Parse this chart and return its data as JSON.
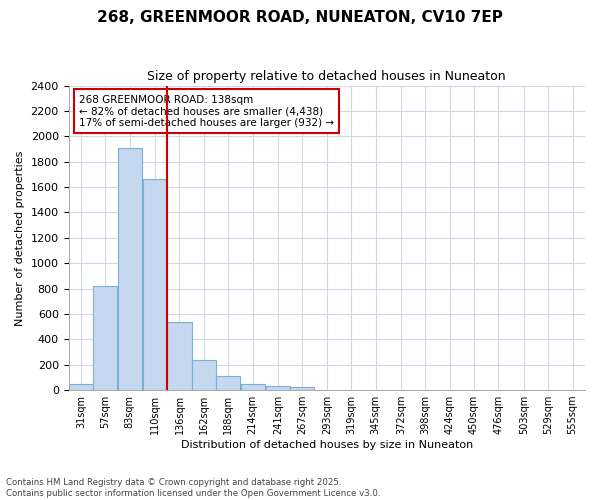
{
  "title": "268, GREENMOOR ROAD, NUNEATON, CV10 7EP",
  "subtitle": "Size of property relative to detached houses in Nuneaton",
  "xlabel": "Distribution of detached houses by size in Nuneaton",
  "ylabel": "Number of detached properties",
  "footer_line1": "Contains HM Land Registry data © Crown copyright and database right 2025.",
  "footer_line2": "Contains public sector information licensed under the Open Government Licence v3.0.",
  "annotation_title": "268 GREENMOOR ROAD: 138sqm",
  "annotation_line1": "← 82% of detached houses are smaller (4,438)",
  "annotation_line2": "17% of semi-detached houses are larger (932) →",
  "red_line_x": 136,
  "bar_color": "#c5d8f0",
  "bar_edge_color": "#7bafd4",
  "red_line_color": "#cc0000",
  "background_color": "#ffffff",
  "grid_color": "#d0d8e8",
  "bin_labels": [
    "31sqm",
    "57sqm",
    "83sqm",
    "110sqm",
    "136sqm",
    "162sqm",
    "188sqm",
    "214sqm",
    "241sqm",
    "267sqm",
    "293sqm",
    "319sqm",
    "345sqm",
    "372sqm",
    "398sqm",
    "424sqm",
    "450sqm",
    "476sqm",
    "503sqm",
    "529sqm",
    "555sqm"
  ],
  "bin_edges": [
    31,
    57,
    83,
    110,
    136,
    162,
    188,
    214,
    241,
    267,
    293,
    319,
    345,
    372,
    398,
    424,
    450,
    476,
    503,
    529,
    555
  ],
  "bar_heights": [
    50,
    820,
    1910,
    1660,
    540,
    240,
    110,
    50,
    35,
    25,
    0,
    0,
    0,
    0,
    0,
    0,
    0,
    0,
    0,
    0,
    0
  ],
  "ylim": [
    0,
    2400
  ],
  "yticks": [
    0,
    200,
    400,
    600,
    800,
    1000,
    1200,
    1400,
    1600,
    1800,
    2000,
    2200,
    2400
  ],
  "title_fontsize": 11,
  "subtitle_fontsize": 9,
  "ylabel_fontsize": 8,
  "xlabel_fontsize": 8,
  "ytick_fontsize": 8,
  "xtick_fontsize": 7
}
